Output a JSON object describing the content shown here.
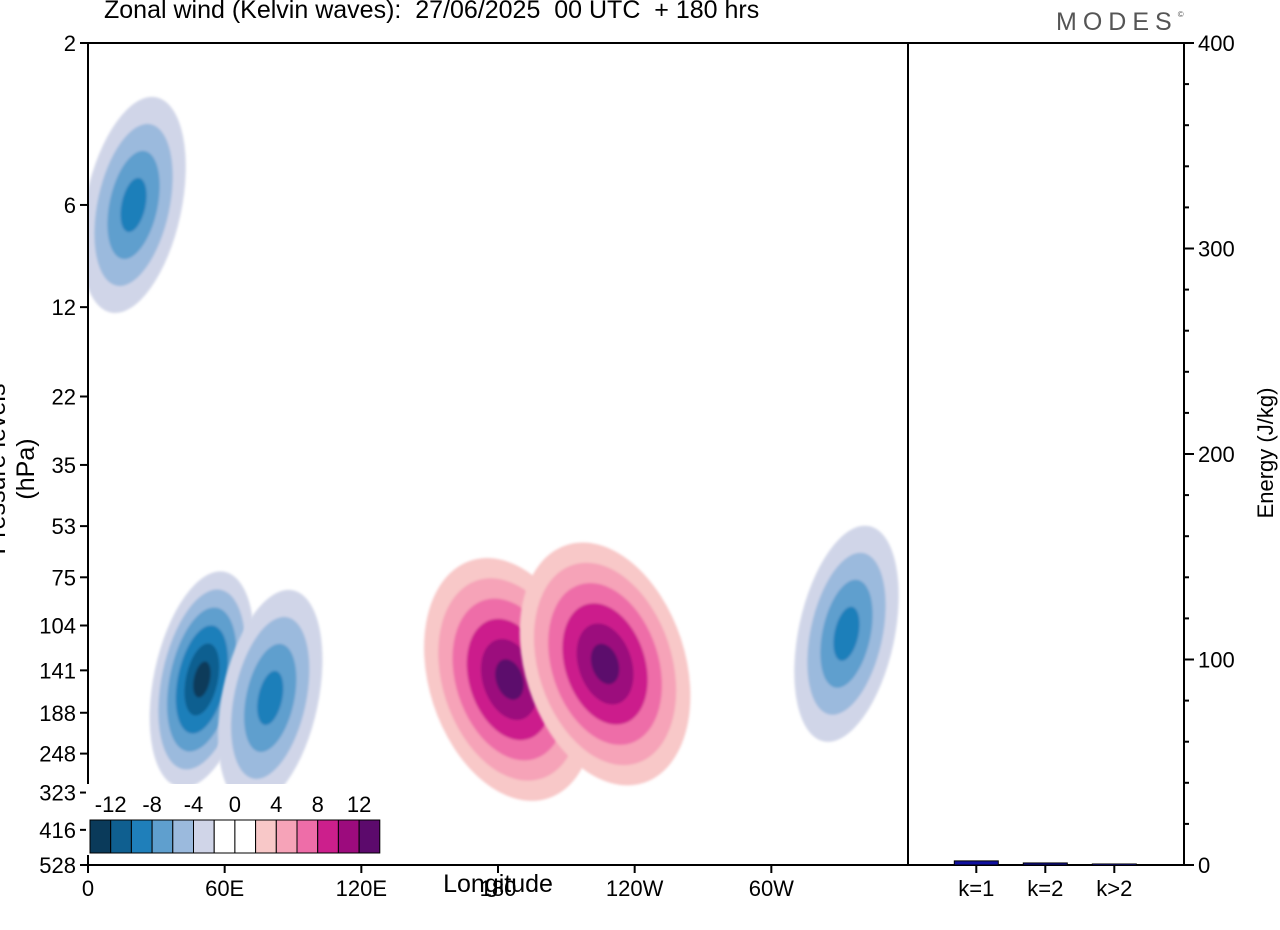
{
  "title": "Zonal wind (Kelvin waves):  27/06/2025  00 UTC  + 180 hrs",
  "brand": "MODES",
  "brand_mark": "©",
  "chart_data": [
    {
      "type": "heatmap",
      "xlabel": "Longitude",
      "ylabel": "Pressure levels (hPa)",
      "x_ticks": [
        "0",
        "60E",
        "120E",
        "180",
        "120W",
        "60W"
      ],
      "x_tick_lon": [
        0,
        60,
        120,
        180,
        240,
        300
      ],
      "xlim": [
        0,
        360
      ],
      "y_ticks": [
        "2",
        "6",
        "12",
        "22",
        "35",
        "53",
        "75",
        "104",
        "141",
        "188",
        "248",
        "323",
        "416",
        "528"
      ],
      "y_scale": "log",
      "colorbar": {
        "labels": [
          "-12",
          "-8",
          "-4",
          "0",
          "4",
          "8",
          "12"
        ],
        "colors": [
          "#0a3a5a",
          "#0f5f90",
          "#1f7fba",
          "#5f9fce",
          "#9bbadd",
          "#d0d5e8",
          "#ffffff",
          "#ffffff",
          "#f8c8c8",
          "#f6a3b8",
          "#ee6da8",
          "#cc1f8c",
          "#9c0b7d",
          "#5c0a6c"
        ]
      },
      "features": [
        {
          "sign": "positive",
          "peak_ms": 12,
          "lon_center": 185,
          "pressure_center": 150
        },
        {
          "sign": "positive",
          "peak_ms": 12,
          "lon_center": 227,
          "pressure_center": 135
        },
        {
          "sign": "negative",
          "peak_ms": -12,
          "lon_center": 50,
          "pressure_center": 150
        },
        {
          "sign": "negative",
          "peak_ms": -8,
          "lon_center": 80,
          "pressure_center": 170
        },
        {
          "sign": "negative",
          "peak_ms": -8,
          "lon_center": 333,
          "pressure_center": 110
        },
        {
          "sign": "negative",
          "peak_ms": -8,
          "lon_center": 20,
          "pressure_center": 6
        }
      ]
    },
    {
      "type": "bar",
      "categories": [
        "k=1",
        "k=2",
        "k>2"
      ],
      "values": [
        2,
        1,
        0.5
      ],
      "ylabel": "Energy (J/kg)",
      "ylim": [
        0,
        400
      ],
      "y_ticks": [
        "0",
        "100",
        "200",
        "300",
        "400"
      ],
      "bar_color": "#1010a0"
    }
  ]
}
